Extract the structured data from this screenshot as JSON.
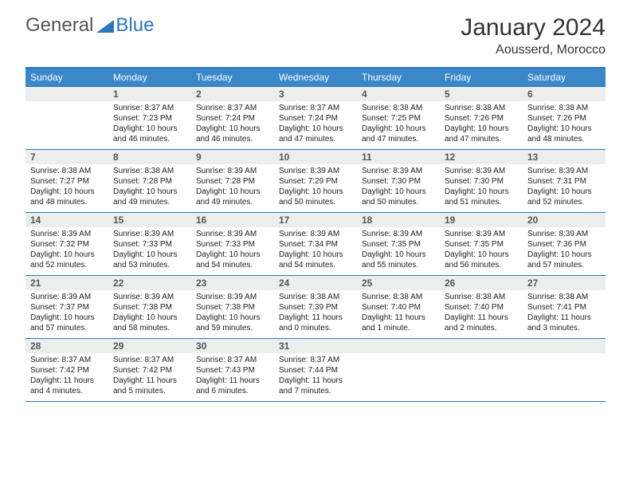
{
  "branding": {
    "word1": "General",
    "word2": "Blue"
  },
  "title": {
    "month": "January 2024",
    "location": "Aousserd, Morocco"
  },
  "dayHeaders": [
    "Sunday",
    "Monday",
    "Tuesday",
    "Wednesday",
    "Thursday",
    "Friday",
    "Saturday"
  ],
  "colors": {
    "header_bg": "#3a87c9",
    "accent": "#2b76bd",
    "num_bar": "#eceeee"
  },
  "weeks": [
    [
      {
        "blank": true
      },
      {
        "num": "1",
        "sunrise": "Sunrise: 8:37 AM",
        "sunset": "Sunset: 7:23 PM",
        "day1": "Daylight: 10 hours",
        "day2": "and 46 minutes."
      },
      {
        "num": "2",
        "sunrise": "Sunrise: 8:37 AM",
        "sunset": "Sunset: 7:24 PM",
        "day1": "Daylight: 10 hours",
        "day2": "and 46 minutes."
      },
      {
        "num": "3",
        "sunrise": "Sunrise: 8:37 AM",
        "sunset": "Sunset: 7:24 PM",
        "day1": "Daylight: 10 hours",
        "day2": "and 47 minutes."
      },
      {
        "num": "4",
        "sunrise": "Sunrise: 8:38 AM",
        "sunset": "Sunset: 7:25 PM",
        "day1": "Daylight: 10 hours",
        "day2": "and 47 minutes."
      },
      {
        "num": "5",
        "sunrise": "Sunrise: 8:38 AM",
        "sunset": "Sunset: 7:26 PM",
        "day1": "Daylight: 10 hours",
        "day2": "and 47 minutes."
      },
      {
        "num": "6",
        "sunrise": "Sunrise: 8:38 AM",
        "sunset": "Sunset: 7:26 PM",
        "day1": "Daylight: 10 hours",
        "day2": "and 48 minutes."
      }
    ],
    [
      {
        "num": "7",
        "sunrise": "Sunrise: 8:38 AM",
        "sunset": "Sunset: 7:27 PM",
        "day1": "Daylight: 10 hours",
        "day2": "and 48 minutes."
      },
      {
        "num": "8",
        "sunrise": "Sunrise: 8:38 AM",
        "sunset": "Sunset: 7:28 PM",
        "day1": "Daylight: 10 hours",
        "day2": "and 49 minutes."
      },
      {
        "num": "9",
        "sunrise": "Sunrise: 8:39 AM",
        "sunset": "Sunset: 7:28 PM",
        "day1": "Daylight: 10 hours",
        "day2": "and 49 minutes."
      },
      {
        "num": "10",
        "sunrise": "Sunrise: 8:39 AM",
        "sunset": "Sunset: 7:29 PM",
        "day1": "Daylight: 10 hours",
        "day2": "and 50 minutes."
      },
      {
        "num": "11",
        "sunrise": "Sunrise: 8:39 AM",
        "sunset": "Sunset: 7:30 PM",
        "day1": "Daylight: 10 hours",
        "day2": "and 50 minutes."
      },
      {
        "num": "12",
        "sunrise": "Sunrise: 8:39 AM",
        "sunset": "Sunset: 7:30 PM",
        "day1": "Daylight: 10 hours",
        "day2": "and 51 minutes."
      },
      {
        "num": "13",
        "sunrise": "Sunrise: 8:39 AM",
        "sunset": "Sunset: 7:31 PM",
        "day1": "Daylight: 10 hours",
        "day2": "and 52 minutes."
      }
    ],
    [
      {
        "num": "14",
        "sunrise": "Sunrise: 8:39 AM",
        "sunset": "Sunset: 7:32 PM",
        "day1": "Daylight: 10 hours",
        "day2": "and 52 minutes."
      },
      {
        "num": "15",
        "sunrise": "Sunrise: 8:39 AM",
        "sunset": "Sunset: 7:33 PM",
        "day1": "Daylight: 10 hours",
        "day2": "and 53 minutes."
      },
      {
        "num": "16",
        "sunrise": "Sunrise: 8:39 AM",
        "sunset": "Sunset: 7:33 PM",
        "day1": "Daylight: 10 hours",
        "day2": "and 54 minutes."
      },
      {
        "num": "17",
        "sunrise": "Sunrise: 8:39 AM",
        "sunset": "Sunset: 7:34 PM",
        "day1": "Daylight: 10 hours",
        "day2": "and 54 minutes."
      },
      {
        "num": "18",
        "sunrise": "Sunrise: 8:39 AM",
        "sunset": "Sunset: 7:35 PM",
        "day1": "Daylight: 10 hours",
        "day2": "and 55 minutes."
      },
      {
        "num": "19",
        "sunrise": "Sunrise: 8:39 AM",
        "sunset": "Sunset: 7:35 PM",
        "day1": "Daylight: 10 hours",
        "day2": "and 56 minutes."
      },
      {
        "num": "20",
        "sunrise": "Sunrise: 8:39 AM",
        "sunset": "Sunset: 7:36 PM",
        "day1": "Daylight: 10 hours",
        "day2": "and 57 minutes."
      }
    ],
    [
      {
        "num": "21",
        "sunrise": "Sunrise: 8:39 AM",
        "sunset": "Sunset: 7:37 PM",
        "day1": "Daylight: 10 hours",
        "day2": "and 57 minutes."
      },
      {
        "num": "22",
        "sunrise": "Sunrise: 8:39 AM",
        "sunset": "Sunset: 7:38 PM",
        "day1": "Daylight: 10 hours",
        "day2": "and 58 minutes."
      },
      {
        "num": "23",
        "sunrise": "Sunrise: 8:39 AM",
        "sunset": "Sunset: 7:38 PM",
        "day1": "Daylight: 10 hours",
        "day2": "and 59 minutes."
      },
      {
        "num": "24",
        "sunrise": "Sunrise: 8:38 AM",
        "sunset": "Sunset: 7:39 PM",
        "day1": "Daylight: 11 hours",
        "day2": "and 0 minutes."
      },
      {
        "num": "25",
        "sunrise": "Sunrise: 8:38 AM",
        "sunset": "Sunset: 7:40 PM",
        "day1": "Daylight: 11 hours",
        "day2": "and 1 minute."
      },
      {
        "num": "26",
        "sunrise": "Sunrise: 8:38 AM",
        "sunset": "Sunset: 7:40 PM",
        "day1": "Daylight: 11 hours",
        "day2": "and 2 minutes."
      },
      {
        "num": "27",
        "sunrise": "Sunrise: 8:38 AM",
        "sunset": "Sunset: 7:41 PM",
        "day1": "Daylight: 11 hours",
        "day2": "and 3 minutes."
      }
    ],
    [
      {
        "num": "28",
        "sunrise": "Sunrise: 8:37 AM",
        "sunset": "Sunset: 7:42 PM",
        "day1": "Daylight: 11 hours",
        "day2": "and 4 minutes."
      },
      {
        "num": "29",
        "sunrise": "Sunrise: 8:37 AM",
        "sunset": "Sunset: 7:42 PM",
        "day1": "Daylight: 11 hours",
        "day2": "and 5 minutes."
      },
      {
        "num": "30",
        "sunrise": "Sunrise: 8:37 AM",
        "sunset": "Sunset: 7:43 PM",
        "day1": "Daylight: 11 hours",
        "day2": "and 6 minutes."
      },
      {
        "num": "31",
        "sunrise": "Sunrise: 8:37 AM",
        "sunset": "Sunset: 7:44 PM",
        "day1": "Daylight: 11 hours",
        "day2": "and 7 minutes."
      },
      {
        "blank": true
      },
      {
        "blank": true
      },
      {
        "blank": true
      }
    ]
  ]
}
